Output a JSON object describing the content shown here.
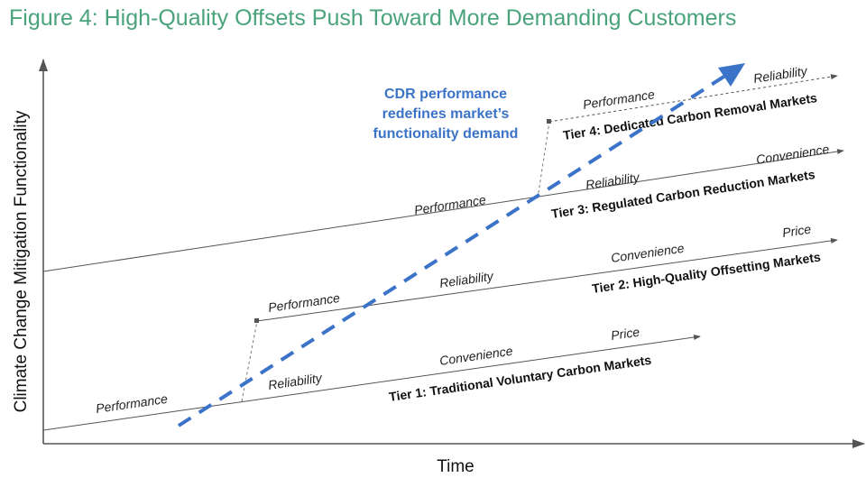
{
  "title": "Figure 4: High-Quality Offsets Push Toward More Demanding Customers",
  "colors": {
    "title": "#4aa37c",
    "trend": "#3b73c9",
    "lines": "#555555"
  },
  "axes": {
    "x_label": "Time",
    "y_label": "Climate Change Mitigation Functionality"
  },
  "callout": [
    "CDR performance",
    "redefines market’s",
    "functionality demand"
  ],
  "tiers": {
    "tier1": {
      "name": "Tier 1: Traditional Voluntary Carbon Markets",
      "labels": [
        "Performance",
        "Reliability",
        "Convenience",
        "Price"
      ]
    },
    "tier2": {
      "name": "Tier 2: High-Quality Offsetting Markets",
      "labels": [
        "Performance",
        "Reliability",
        "Convenience",
        "Price"
      ]
    },
    "tier3": {
      "name": "Tier 3: Regulated Carbon Reduction Markets",
      "labels": [
        "Performance",
        "Reliability",
        "Convenience"
      ]
    },
    "tier4": {
      "name": "Tier 4: Dedicated Carbon Removal Markets",
      "labels": [
        "Performance",
        "Reliability"
      ]
    }
  }
}
